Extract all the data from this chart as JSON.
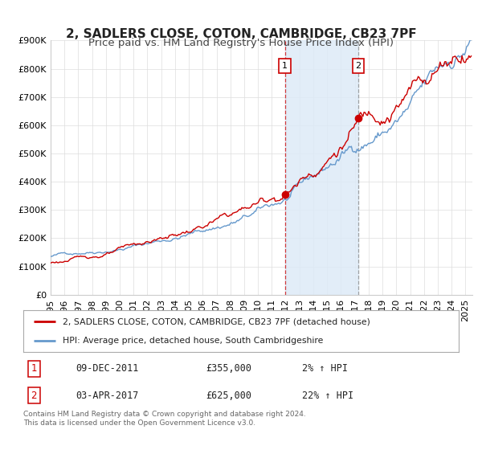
{
  "title": "2, SADLERS CLOSE, COTON, CAMBRIDGE, CB23 7PF",
  "subtitle": "Price paid vs. HM Land Registry's House Price Index (HPI)",
  "ylim": [
    0,
    900000
  ],
  "yticks": [
    0,
    100000,
    200000,
    300000,
    400000,
    500000,
    600000,
    700000,
    800000,
    900000
  ],
  "ytick_labels": [
    "£0",
    "£100K",
    "£200K",
    "£300K",
    "£400K",
    "£500K",
    "£600K",
    "£700K",
    "£800K",
    "£900K"
  ],
  "xmin": 1995.0,
  "xmax": 2025.5,
  "sale1_date": 2011.94,
  "sale1_price": 355000,
  "sale1_label": "1",
  "sale2_date": 2017.25,
  "sale2_price": 625000,
  "sale2_label": "2",
  "sale_color": "#cc0000",
  "hpi_color": "#6699cc",
  "shaded_color": "#ddeaf7",
  "legend_label1": "2, SADLERS CLOSE, COTON, CAMBRIDGE, CB23 7PF (detached house)",
  "legend_label2": "HPI: Average price, detached house, South Cambridgeshire",
  "table_row1": [
    "1",
    "09-DEC-2011",
    "£355,000",
    "2% ↑ HPI"
  ],
  "table_row2": [
    "2",
    "03-APR-2017",
    "£625,000",
    "22% ↑ HPI"
  ],
  "footnote1": "Contains HM Land Registry data © Crown copyright and database right 2024.",
  "footnote2": "This data is licensed under the Open Government Licence v3.0.",
  "background_color": "#ffffff",
  "grid_color": "#dddddd",
  "title_fontsize": 11,
  "subtitle_fontsize": 9.5,
  "tick_fontsize": 8
}
